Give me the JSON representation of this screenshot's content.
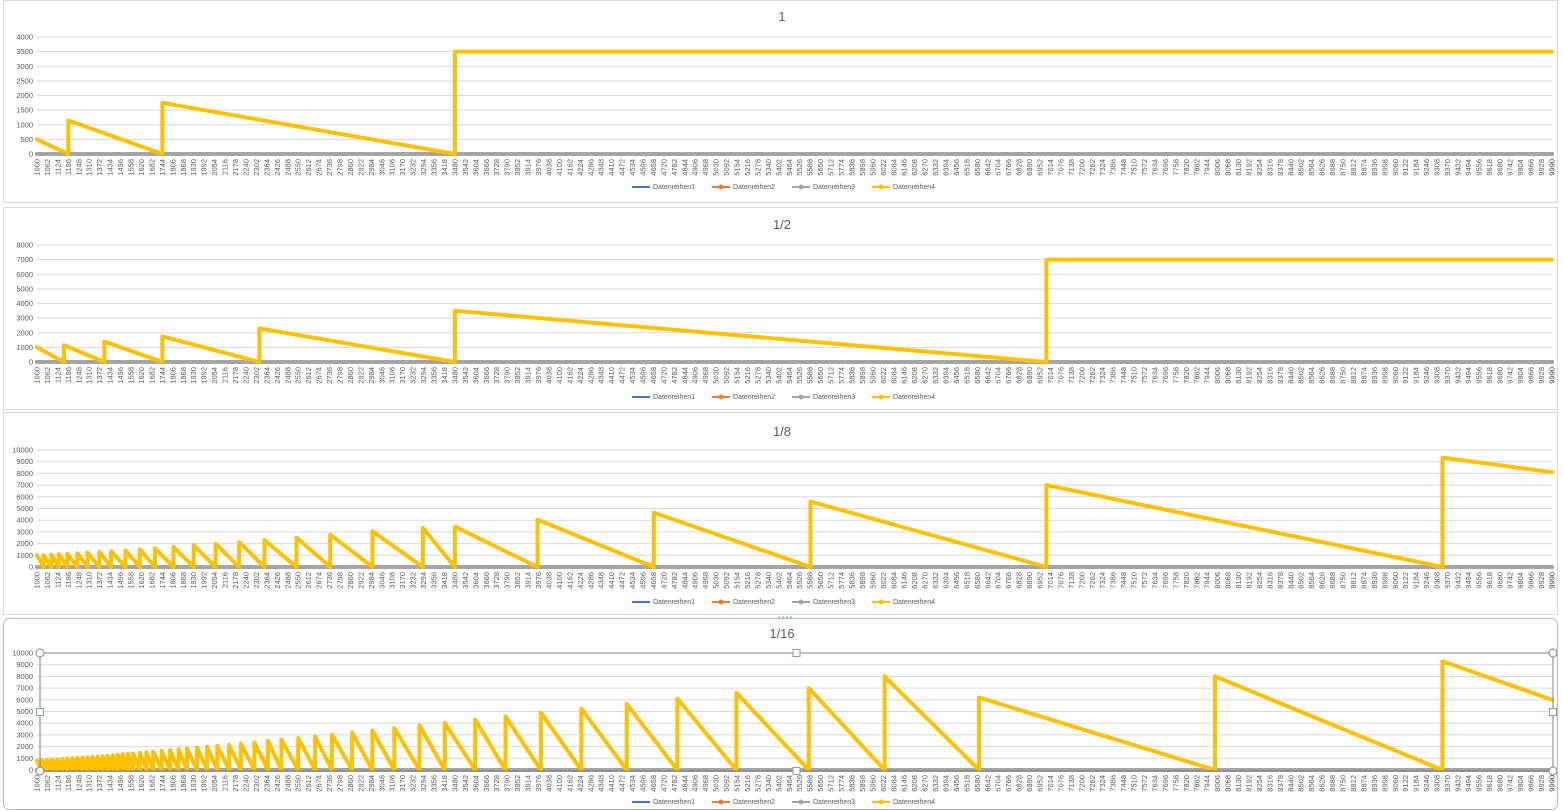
{
  "chart_data": [
    {
      "type": "line",
      "title": "1",
      "xlabel": "",
      "ylabel": "",
      "ylim": [
        0,
        4000
      ],
      "yticks": [
        0,
        500,
        1000,
        1500,
        2000,
        2500,
        3000,
        3500,
        4000
      ],
      "x_range": [
        1000,
        9990
      ],
      "x_tick_step": 62,
      "grid": true,
      "legend_position": "bottom",
      "series": [
        {
          "name": "Datenreihen1",
          "color": "#4472c4",
          "x": [
            1000,
            9990
          ],
          "values": [
            0,
            0
          ]
        },
        {
          "name": "Datenreihen2",
          "color": "#ed7d31",
          "x": [
            1000,
            9990
          ],
          "values": [
            0,
            0
          ]
        },
        {
          "name": "Datenreihen3",
          "color": "#a5a5a5",
          "x": [
            1000,
            9990
          ],
          "values": [
            0,
            0
          ]
        },
        {
          "name": "Datenreihen4",
          "color": "#ffc000",
          "x": [
            1000,
            1186,
            1186,
            1744,
            1744,
            3480,
            3480,
            9990
          ],
          "values": [
            500,
            0,
            1150,
            0,
            1750,
            0,
            3500,
            3500
          ]
        }
      ]
    },
    {
      "type": "line",
      "title": "1/2",
      "xlabel": "",
      "ylabel": "",
      "ylim": [
        0,
        8000
      ],
      "yticks": [
        0,
        1000,
        2000,
        3000,
        4000,
        5000,
        6000,
        7000,
        8000
      ],
      "x_range": [
        1000,
        9990
      ],
      "x_tick_step": 62,
      "grid": true,
      "legend_position": "bottom",
      "series": [
        {
          "name": "Datenreihen1",
          "color": "#4472c4",
          "x": [
            1000,
            9990
          ],
          "values": [
            0,
            0
          ]
        },
        {
          "name": "Datenreihen2",
          "color": "#ed7d31",
          "x": [
            1000,
            9990
          ],
          "values": [
            0,
            0
          ]
        },
        {
          "name": "Datenreihen3",
          "color": "#a5a5a5",
          "x": [
            1000,
            9990
          ],
          "values": [
            0,
            0
          ]
        },
        {
          "name": "Datenreihen4",
          "color": "#ffc000",
          "x": [
            1000,
            1160,
            1160,
            1400,
            1400,
            1744,
            1744,
            2320,
            2320,
            3480,
            3480,
            6990,
            6990,
            9990
          ],
          "values": [
            1000,
            0,
            1150,
            0,
            1400,
            0,
            1750,
            0,
            2300,
            0,
            3500,
            0,
            7000,
            7000
          ]
        }
      ]
    },
    {
      "type": "line",
      "title": "1/8",
      "xlabel": "",
      "ylabel": "",
      "ylim": [
        0,
        10000
      ],
      "yticks": [
        0,
        1000,
        2000,
        3000,
        4000,
        5000,
        6000,
        7000,
        8000,
        9000,
        10000
      ],
      "x_range": [
        1000,
        9990
      ],
      "x_tick_step": 62,
      "grid": true,
      "legend_position": "bottom",
      "series": [
        {
          "name": "Datenreihen1",
          "color": "#4472c4",
          "x": [
            1000,
            9990
          ],
          "values": [
            0,
            0
          ]
        },
        {
          "name": "Datenreihen2",
          "color": "#ed7d31",
          "x": [
            1000,
            9990
          ],
          "values": [
            0,
            0
          ]
        },
        {
          "name": "Datenreihen3",
          "color": "#a5a5a5",
          "x": [
            1000,
            9990
          ],
          "values": [
            0,
            0
          ]
        },
        {
          "name": "Datenreihen4",
          "color": "#ffc000",
          "sawtooth_peaks_x": [
            1000,
            1040,
            1085,
            1130,
            1180,
            1240,
            1300,
            1370,
            1440,
            1525,
            1610,
            1700,
            1810,
            1930,
            2060,
            2200,
            2350,
            2540,
            2740,
            2990,
            3290,
            3480,
            3970,
            4660,
            5590,
            6990,
            9340
          ],
          "sawtooth_peaks_y": [
            1000,
            1000,
            1050,
            1100,
            1120,
            1180,
            1230,
            1300,
            1350,
            1420,
            1500,
            1600,
            1720,
            1860,
            1990,
            2130,
            2300,
            2520,
            2770,
            3050,
            3330,
            3450,
            4050,
            4650,
            5600,
            7000,
            9350
          ],
          "end_x": 9990,
          "end_y": 8100
        }
      ]
    },
    {
      "type": "line",
      "title": "1/16",
      "xlabel": "",
      "ylabel": "",
      "ylim": [
        0,
        10000
      ],
      "yticks": [
        0,
        1000,
        2000,
        3000,
        4000,
        5000,
        6000,
        7000,
        8000,
        9000,
        10000
      ],
      "x_range": [
        1000,
        9990
      ],
      "x_tick_step": 62,
      "grid": true,
      "legend_position": "bottom",
      "series": [
        {
          "name": "Datenreihen1",
          "color": "#4472c4",
          "x": [
            1000,
            9990
          ],
          "values": [
            0,
            0
          ]
        },
        {
          "name": "Datenreihen2",
          "color": "#ed7d31",
          "x": [
            1000,
            9990
          ],
          "values": [
            0,
            0
          ]
        },
        {
          "name": "Datenreihen3",
          "color": "#a5a5a5",
          "x": [
            1000,
            9990
          ],
          "values": [
            0,
            0
          ]
        },
        {
          "name": "Datenreihen4",
          "color": "#ffc000",
          "sawtooth_peaks_x": [
            1000,
            1030,
            1060,
            1090,
            1120,
            1150,
            1180,
            1210,
            1240,
            1270,
            1300,
            1330,
            1360,
            1390,
            1420,
            1450,
            1480,
            1510,
            1540,
            1570,
            1610,
            1650,
            1690,
            1740,
            1790,
            1840,
            1890,
            1950,
            2010,
            2070,
            2140,
            2210,
            2290,
            2370,
            2450,
            2550,
            2650,
            2750,
            2870,
            2990,
            3120,
            3270,
            3420,
            3600,
            3780,
            3990,
            4230,
            4500,
            4800,
            5150,
            5580,
            6030,
            6590,
            7990,
            9340
          ],
          "sawtooth_peaks_y": [
            800,
            850,
            880,
            900,
            920,
            950,
            980,
            1000,
            1030,
            1060,
            1090,
            1120,
            1150,
            1180,
            1220,
            1260,
            1300,
            1340,
            1380,
            1420,
            1470,
            1520,
            1580,
            1640,
            1700,
            1770,
            1840,
            1910,
            1990,
            2070,
            2160,
            2260,
            2360,
            2480,
            2600,
            2730,
            2870,
            3030,
            3200,
            3380,
            3580,
            3800,
            4030,
            4300,
            4580,
            4900,
            5250,
            5650,
            6100,
            6600,
            7000,
            8000,
            6200,
            8000,
            9300
          ],
          "end_x": 9990,
          "end_y": 6000
        }
      ]
    }
  ]
}
